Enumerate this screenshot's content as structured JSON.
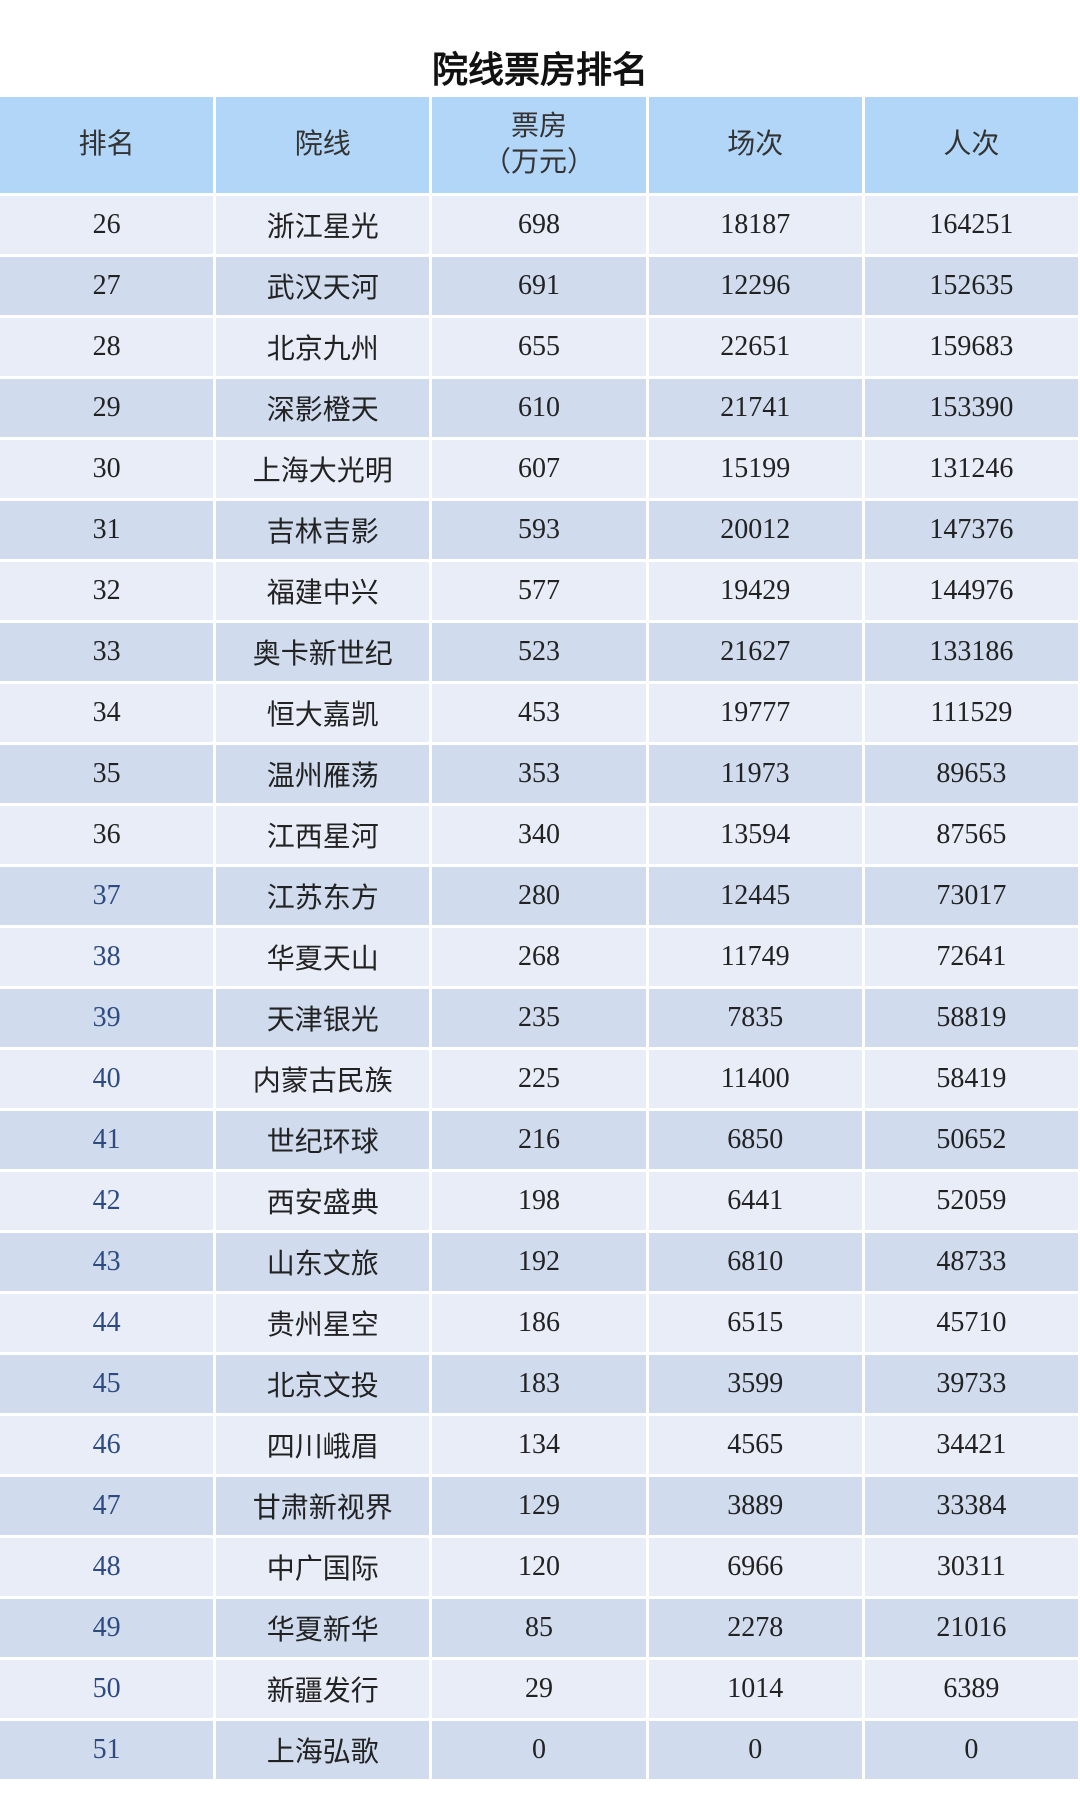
{
  "title": "院线票房排名",
  "colors": {
    "header_bg": "#b2d6f8",
    "row_light": "#e8edf8",
    "row_dark": "#d0dcee",
    "rank_blue": "#2d4b80"
  },
  "columns": [
    "排名",
    "院线",
    "票房",
    "（万元）",
    "场次",
    "人次"
  ],
  "rows": [
    [
      "26",
      "浙江星光",
      "698",
      "18187",
      "164251"
    ],
    [
      "27",
      "武汉天河",
      "691",
      "12296",
      "152635"
    ],
    [
      "28",
      "北京九州",
      "655",
      "22651",
      "159683"
    ],
    [
      "29",
      "深影橙天",
      "610",
      "21741",
      "153390"
    ],
    [
      "30",
      "上海大光明",
      "607",
      "15199",
      "131246"
    ],
    [
      "31",
      "吉林吉影",
      "593",
      "20012",
      "147376"
    ],
    [
      "32",
      "福建中兴",
      "577",
      "19429",
      "144976"
    ],
    [
      "33",
      "奥卡新世纪",
      "523",
      "21627",
      "133186"
    ],
    [
      "34",
      "恒大嘉凯",
      "453",
      "19777",
      "111529"
    ],
    [
      "35",
      "温州雁荡",
      "353",
      "11973",
      "89653"
    ],
    [
      "36",
      "江西星河",
      "340",
      "13594",
      "87565"
    ],
    [
      "37",
      "江苏东方",
      "280",
      "12445",
      "73017"
    ],
    [
      "38",
      "华夏天山",
      "268",
      "11749",
      "72641"
    ],
    [
      "39",
      "天津银光",
      "235",
      "7835",
      "58819"
    ],
    [
      "40",
      "内蒙古民族",
      "225",
      "11400",
      "58419"
    ],
    [
      "41",
      "世纪环球",
      "216",
      "6850",
      "50652"
    ],
    [
      "42",
      "西安盛典",
      "198",
      "6441",
      "52059"
    ],
    [
      "43",
      "山东文旅",
      "192",
      "6810",
      "48733"
    ],
    [
      "44",
      "贵州星空",
      "186",
      "6515",
      "45710"
    ],
    [
      "45",
      "北京文投",
      "183",
      "3599",
      "39733"
    ],
    [
      "46",
      "四川峨眉",
      "134",
      "4565",
      "34421"
    ],
    [
      "47",
      "甘肃新视界",
      "129",
      "3889",
      "33384"
    ],
    [
      "48",
      "中广国际",
      "120",
      "6966",
      "30311"
    ],
    [
      "49",
      "华夏新华",
      "85",
      "2278",
      "21016"
    ],
    [
      "50",
      "新疆发行",
      "29",
      "1014",
      "6389"
    ],
    [
      "51",
      "上海弘歌",
      "0",
      "0",
      "0"
    ]
  ]
}
